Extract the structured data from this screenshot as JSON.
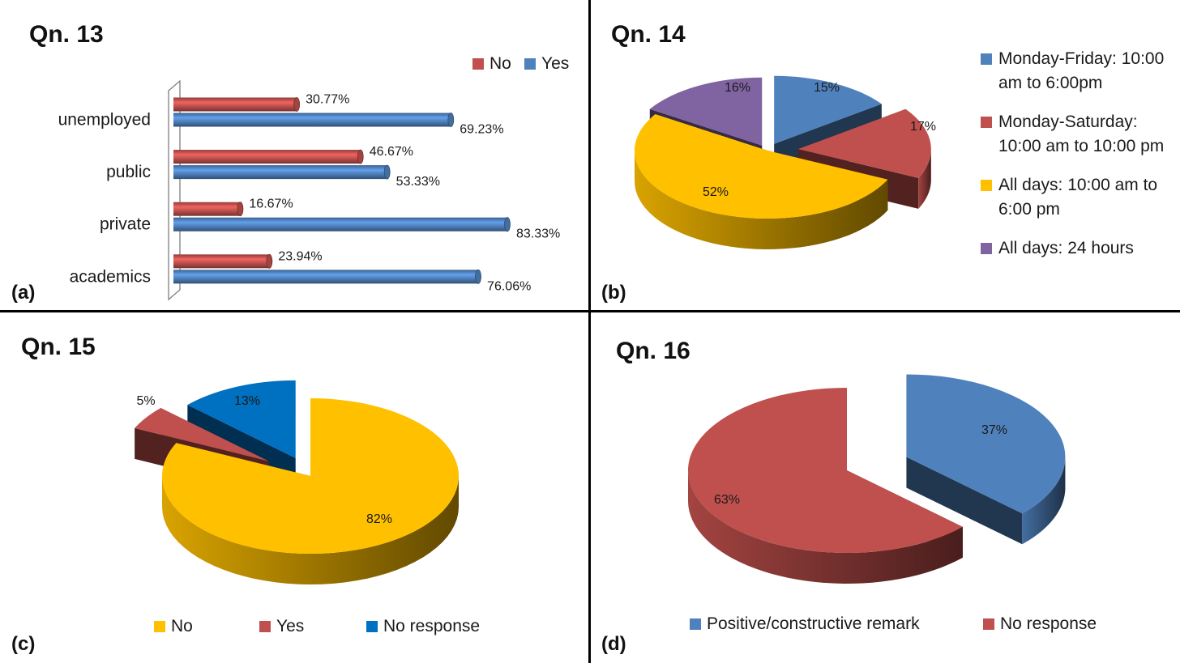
{
  "panels": [
    {
      "label": "(a)",
      "title": "Qn. 13"
    },
    {
      "label": "(b)",
      "title": "Qn. 14"
    },
    {
      "label": "(c)",
      "title": "Qn. 15"
    },
    {
      "label": "(d)",
      "title": "Qn. 16"
    }
  ],
  "colors": {
    "red": "#C0504D",
    "blue": "#4F81BD",
    "yellow": "#FFC000",
    "purple": "#8064A2",
    "darkblue": "#0070C0"
  },
  "chart_data": [
    {
      "type": "bar",
      "orientation": "horizontal",
      "categories": [
        "unemployed",
        "public",
        "private",
        "academics"
      ],
      "series": [
        {
          "name": "No",
          "color": "#C0504D",
          "values": [
            30.77,
            46.67,
            16.67,
            23.94
          ],
          "labels": [
            "30.77%",
            "46.67%",
            "16.67%",
            "23.94%"
          ]
        },
        {
          "name": "Yes",
          "color": "#4F81BD",
          "values": [
            69.23,
            53.33,
            83.33,
            76.06
          ],
          "labels": [
            "69.23%",
            "53.33%",
            "83.33%",
            "76.06%"
          ]
        }
      ],
      "xlim": [
        0,
        100
      ],
      "legend": "top-right"
    },
    {
      "type": "pie",
      "slices": [
        {
          "name": "Monday-Friday: 10:00 am to 6:00pm",
          "value": 15,
          "label": "15%",
          "color": "#4F81BD"
        },
        {
          "name": "Monday-Saturday: 10:00 am to 10:00 pm",
          "value": 17,
          "label": "17%",
          "color": "#C0504D"
        },
        {
          "name": "All days: 10:00 am to 6:00 pm",
          "value": 52,
          "label": "52%",
          "color": "#FFC000"
        },
        {
          "name": "All days: 24 hours",
          "value": 16,
          "label": "16%",
          "color": "#8064A2"
        }
      ],
      "legend": "right"
    },
    {
      "type": "pie",
      "slices": [
        {
          "name": "No",
          "value": 82,
          "label": "82%",
          "color": "#FFC000"
        },
        {
          "name": "Yes",
          "value": 5,
          "label": "5%",
          "color": "#C0504D"
        },
        {
          "name": "No response",
          "value": 13,
          "label": "13%",
          "color": "#0070C0"
        }
      ],
      "legend": "bottom"
    },
    {
      "type": "pie",
      "slices": [
        {
          "name": "Positive/constructive remark",
          "value": 37,
          "label": "37%",
          "color": "#4F81BD"
        },
        {
          "name": "No response",
          "value": 63,
          "label": "63%",
          "color": "#C0504D"
        }
      ],
      "legend": "bottom"
    }
  ]
}
